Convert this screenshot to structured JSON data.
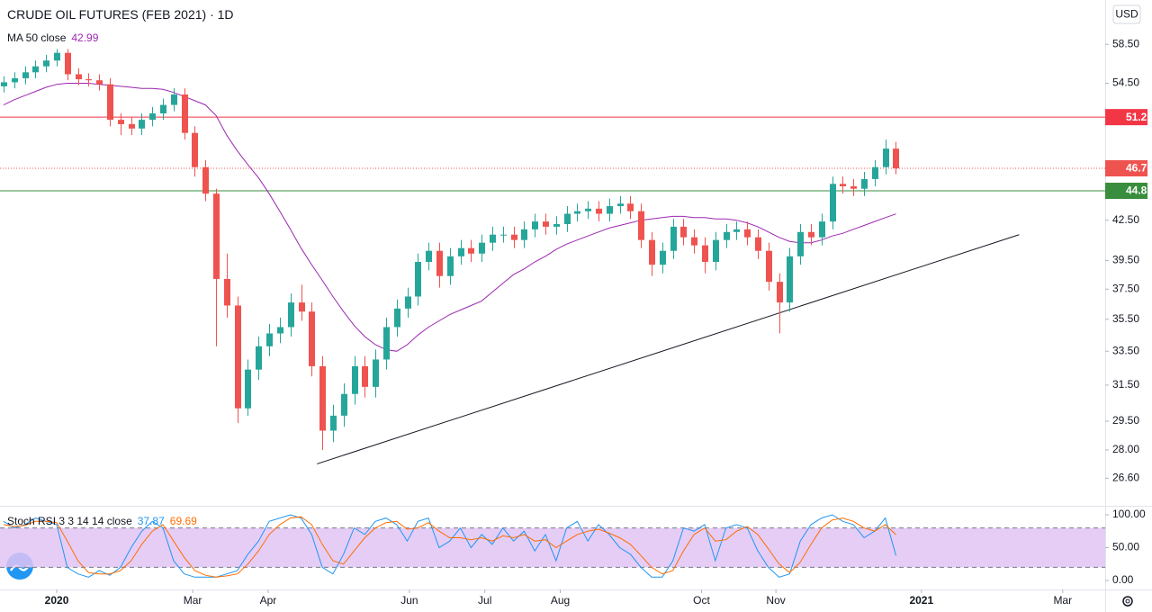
{
  "chart_data": [
    {
      "type": "candlestick",
      "title": "CRUDE OIL FUTURES (FEB 2021) · 1D",
      "currency": "USD",
      "log_scale": true,
      "grid": false,
      "up_color": "#26a69a",
      "down_color": "#ef5350",
      "open": [
        54.2,
        54.6,
        55.0,
        55.6,
        56.2,
        56.8,
        57.6,
        55.4,
        54.9,
        54.8,
        54.4,
        51.0,
        50.6,
        50.2,
        51.0,
        51.6,
        52.4,
        53.4,
        49.8,
        46.8,
        44.6,
        38.2,
        36.4,
        30.2,
        32.4,
        33.8,
        34.6,
        35.0,
        36.6,
        36.0,
        32.6,
        29.0,
        29.8,
        31.0,
        32.6,
        31.4,
        33.0,
        35.0,
        36.2,
        37.0,
        39.4,
        40.2,
        38.4,
        39.8,
        40.4,
        40.0,
        40.8,
        41.4,
        41.4,
        41.0,
        41.8,
        42.4,
        42.0,
        42.2,
        43.0,
        43.2,
        43.4,
        43.0,
        43.6,
        43.8,
        43.2,
        41.0,
        39.2,
        40.2,
        42.0,
        41.2,
        40.6,
        39.4,
        41.0,
        41.6,
        41.8,
        41.2,
        40.2,
        38.0,
        36.6,
        39.8,
        41.6,
        41.2,
        42.4,
        45.4,
        45.2,
        45.0,
        45.8,
        46.8,
        48.4
      ],
      "high": [
        55.2,
        55.6,
        56.2,
        56.8,
        57.4,
        58.0,
        58.0,
        56.0,
        55.5,
        55.4,
        55.0,
        51.6,
        51.2,
        51.6,
        52.2,
        53.0,
        54.0,
        54.0,
        50.4,
        47.4,
        45.0,
        40.0,
        37.0,
        33.0,
        34.4,
        35.2,
        35.6,
        37.2,
        37.8,
        36.6,
        33.2,
        30.4,
        31.6,
        33.2,
        33.2,
        33.6,
        35.6,
        36.8,
        37.6,
        40.0,
        40.8,
        40.8,
        40.4,
        41.0,
        41.0,
        41.4,
        42.0,
        42.0,
        42.0,
        42.4,
        43.0,
        43.0,
        42.8,
        43.6,
        43.8,
        44.0,
        44.0,
        44.2,
        44.4,
        44.4,
        43.8,
        41.6,
        40.8,
        42.6,
        42.6,
        41.8,
        41.2,
        41.6,
        42.2,
        42.4,
        42.4,
        41.8,
        40.8,
        38.6,
        40.4,
        42.2,
        42.2,
        43.0,
        46.0,
        46.0,
        45.8,
        46.4,
        47.4,
        49.2,
        49.0
      ],
      "low": [
        53.6,
        54.0,
        54.4,
        55.0,
        55.6,
        56.2,
        54.8,
        54.3,
        54.2,
        53.8,
        50.4,
        49.6,
        49.6,
        49.6,
        50.4,
        51.0,
        51.8,
        49.2,
        46.0,
        44.0,
        33.8,
        35.6,
        29.4,
        29.8,
        31.8,
        33.2,
        34.0,
        34.4,
        35.4,
        32.0,
        28.0,
        28.4,
        29.2,
        30.4,
        30.8,
        30.8,
        32.4,
        34.4,
        35.6,
        36.4,
        38.8,
        37.6,
        37.8,
        39.2,
        39.4,
        39.4,
        40.2,
        40.8,
        40.4,
        40.4,
        41.2,
        41.4,
        41.4,
        41.6,
        42.4,
        42.6,
        42.4,
        42.4,
        43.0,
        42.6,
        40.4,
        38.4,
        38.6,
        39.6,
        40.6,
        40.0,
        38.6,
        38.8,
        40.4,
        41.0,
        40.6,
        39.6,
        37.4,
        34.6,
        36.0,
        39.2,
        40.6,
        40.6,
        41.8,
        44.6,
        44.4,
        44.4,
        45.2,
        46.2,
        46.2
      ],
      "close": [
        54.6,
        55.0,
        55.6,
        56.2,
        56.8,
        57.6,
        55.4,
        54.9,
        54.8,
        54.4,
        51.0,
        50.6,
        50.2,
        51.0,
        51.6,
        52.4,
        53.4,
        49.8,
        46.8,
        44.6,
        38.2,
        36.4,
        30.2,
        32.4,
        33.8,
        34.6,
        35.0,
        36.6,
        36.0,
        32.6,
        29.0,
        29.8,
        31.0,
        32.6,
        31.4,
        33.0,
        35.0,
        36.2,
        37.0,
        39.4,
        40.2,
        38.4,
        39.8,
        40.4,
        40.0,
        40.8,
        41.4,
        41.4,
        41.0,
        41.8,
        42.4,
        42.0,
        42.2,
        43.0,
        43.2,
        43.4,
        43.0,
        43.6,
        43.8,
        43.2,
        41.0,
        39.2,
        40.2,
        42.0,
        41.2,
        40.6,
        39.4,
        41.0,
        41.6,
        41.8,
        41.2,
        40.2,
        38.0,
        36.6,
        39.8,
        41.6,
        41.2,
        42.4,
        45.4,
        45.2,
        45.0,
        45.8,
        46.8,
        48.4,
        46.7
      ],
      "series": [
        {
          "name": "MA 50 close",
          "color": "#9c27b0",
          "values": [
            52.4,
            52.9,
            53.3,
            53.7,
            54.1,
            54.4,
            54.5,
            54.5,
            54.5,
            54.4,
            54.3,
            54.2,
            54.1,
            54.0,
            54.0,
            53.9,
            53.6,
            53.2,
            52.8,
            52.4,
            51.4,
            49.6,
            48.2,
            47.0,
            45.9,
            44.6,
            43.2,
            41.8,
            40.4,
            39.2,
            38.1,
            37.0,
            36.0,
            35.1,
            34.4,
            33.9,
            33.6,
            33.5,
            33.9,
            34.5,
            35.0,
            35.4,
            35.8,
            36.1,
            36.4,
            36.7,
            37.3,
            37.9,
            38.5,
            38.9,
            39.4,
            39.8,
            40.3,
            40.7,
            41.0,
            41.3,
            41.6,
            41.9,
            42.1,
            42.3,
            42.5,
            42.6,
            42.7,
            42.8,
            42.8,
            42.7,
            42.7,
            42.6,
            42.6,
            42.5,
            42.3,
            42.0,
            41.6,
            41.2,
            40.9,
            40.8,
            40.8,
            41.0,
            41.3,
            41.5,
            41.8,
            42.1,
            42.4,
            42.7,
            42.99
          ]
        }
      ],
      "levels": [
        {
          "value": 51.25,
          "color": "#f23645"
        },
        {
          "value": 44.83,
          "color": "#388e3c"
        }
      ],
      "last_price": {
        "value": 46.7,
        "label": "46.70",
        "color": "#ef5350"
      },
      "trendline": {
        "x": [
          29.5,
          95.6
        ],
        "y": [
          27.3,
          41.4
        ],
        "color": "#131722"
      },
      "ylim": [
        25.3,
        63.4
      ],
      "yticks": [
        {
          "value": 26.6,
          "label": "26.60"
        },
        {
          "value": 28,
          "label": "28.00"
        },
        {
          "value": 29.5,
          "label": "29.50"
        },
        {
          "value": 31.5,
          "label": "31.50"
        },
        {
          "value": 33.5,
          "label": "33.50"
        },
        {
          "value": 35.5,
          "label": "35.50"
        },
        {
          "value": 37.5,
          "label": "37.50"
        },
        {
          "value": 39.5,
          "label": "39.50"
        },
        {
          "value": 42.5,
          "label": "42.50"
        },
        {
          "value": 54.5,
          "label": "54.50"
        },
        {
          "value": 58.5,
          "label": "58.50"
        }
      ],
      "xlim": [
        -0.34,
        103.7
      ],
      "xticks": [
        {
          "value": 5,
          "label": "2020"
        },
        {
          "value": 17.8,
          "label": "Mar"
        },
        {
          "value": 24.9,
          "label": "Apr"
        },
        {
          "value": 38.2,
          "label": "Jun"
        },
        {
          "value": 45.3,
          "label": "Jul"
        },
        {
          "value": 52.4,
          "label": "Aug"
        },
        {
          "value": 65.7,
          "label": "Oct"
        },
        {
          "value": 72.7,
          "label": "Nov"
        },
        {
          "value": 86.4,
          "label": "2021"
        },
        {
          "value": 99.7,
          "label": "Mar"
        }
      ]
    },
    {
      "type": "line",
      "title": "Stoch RSI 3 3 14 14 close",
      "band": [
        20,
        80
      ],
      "band_color": "#e1c4f5",
      "series": [
        {
          "color": "#2196f3",
          "values": [
            90,
            80,
            85,
            95,
            90,
            85,
            20,
            10,
            5,
            15,
            8,
            20,
            50,
            75,
            90,
            80,
            30,
            10,
            5,
            5,
            5,
            10,
            15,
            40,
            60,
            90,
            95,
            100,
            95,
            70,
            20,
            10,
            40,
            80,
            70,
            90,
            95,
            85,
            60,
            90,
            95,
            50,
            60,
            80,
            50,
            70,
            55,
            80,
            60,
            75,
            45,
            70,
            30,
            80,
            90,
            60,
            85,
            70,
            50,
            40,
            20,
            5,
            5,
            30,
            80,
            75,
            85,
            30,
            80,
            85,
            80,
            45,
            20,
            5,
            10,
            60,
            85,
            95,
            100,
            90,
            85,
            65,
            75,
            95,
            37.87
          ]
        },
        {
          "color": "#ff6d00",
          "values": [
            85,
            82,
            84,
            90,
            90,
            88,
            60,
            30,
            12,
            10,
            10,
            15,
            30,
            55,
            75,
            85,
            60,
            35,
            15,
            8,
            5,
            7,
            10,
            25,
            45,
            70,
            85,
            95,
            97,
            85,
            55,
            30,
            25,
            45,
            65,
            80,
            88,
            90,
            78,
            80,
            88,
            75,
            65,
            65,
            62,
            65,
            60,
            68,
            65,
            70,
            60,
            62,
            50,
            60,
            70,
            75,
            78,
            72,
            65,
            55,
            38,
            20,
            10,
            15,
            45,
            70,
            80,
            60,
            62,
            75,
            82,
            70,
            48,
            25,
            12,
            28,
            55,
            80,
            92,
            95,
            90,
            80,
            75,
            85,
            69.69
          ]
        }
      ],
      "ylim": [
        -13.7,
        112.3
      ],
      "yticks": [
        {
          "value": 0,
          "label": "0.00"
        },
        {
          "value": 50,
          "label": "50.00"
        },
        {
          "value": 100,
          "label": "100.00"
        }
      ]
    }
  ]
}
